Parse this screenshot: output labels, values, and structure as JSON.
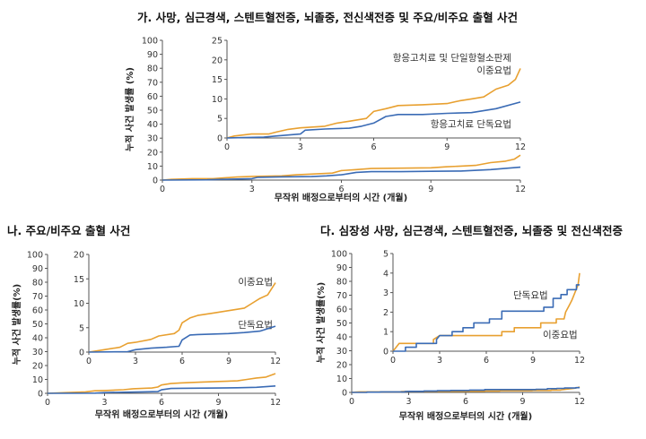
{
  "colors": {
    "dual": "#E8A030",
    "mono": "#3A6BB5",
    "axis": "#555555"
  },
  "chart_data": [
    {
      "type": "line",
      "title": "가. 사망, 심근경색, 스텐트혈전증, 뇌졸중, 전신색전증 및 주요/비주요 출혈 사건",
      "xlabel": "무작위 배정으로부터의 시간 (개월)",
      "ylabel": "누적 사건 발생률 (%)",
      "xlim": [
        0,
        12
      ],
      "xticks": [
        0,
        3,
        6,
        9,
        12
      ],
      "ylim": [
        0,
        100
      ],
      "yticks": [
        0,
        10,
        20,
        30,
        40,
        50,
        60,
        70,
        80,
        90,
        100
      ],
      "inset": {
        "xlim": [
          0,
          12
        ],
        "xticks": [
          0,
          3,
          6,
          9,
          12
        ],
        "ylim": [
          0,
          25
        ],
        "yticks": [
          0,
          5,
          10,
          15,
          20,
          25
        ]
      },
      "annotations": {
        "dual_line1": "항응고치료 및 단일항혈소판제",
        "dual_line2": "이중요법",
        "mono": "항응고치료 단독요법"
      },
      "series": [
        {
          "key": "dual",
          "points": [
            [
              0,
              0
            ],
            [
              0.3,
              0.5
            ],
            [
              1,
              1
            ],
            [
              1.7,
              1
            ],
            [
              2,
              1.5
            ],
            [
              2.5,
              2.2
            ],
            [
              3,
              2.6
            ],
            [
              4,
              3
            ],
            [
              4.5,
              3.8
            ],
            [
              5,
              4.3
            ],
            [
              5.7,
              5
            ],
            [
              6,
              6.8
            ],
            [
              6.5,
              7.5
            ],
            [
              7,
              8.3
            ],
            [
              8,
              8.5
            ],
            [
              9,
              8.8
            ],
            [
              9.5,
              9.5
            ],
            [
              10,
              10
            ],
            [
              10.5,
              10.5
            ],
            [
              11,
              12.5
            ],
            [
              11.5,
              13.5
            ],
            [
              11.8,
              15
            ],
            [
              12,
              17.8
            ]
          ]
        },
        {
          "key": "mono",
          "points": [
            [
              0,
              0
            ],
            [
              1.5,
              0.2
            ],
            [
              2,
              0.5
            ],
            [
              3,
              1
            ],
            [
              3.2,
              2
            ],
            [
              4,
              2.3
            ],
            [
              5,
              2.5
            ],
            [
              5.5,
              3
            ],
            [
              6,
              3.8
            ],
            [
              6.5,
              5.5
            ],
            [
              7,
              6
            ],
            [
              8,
              6
            ],
            [
              9,
              6.3
            ],
            [
              10,
              6.5
            ],
            [
              11,
              7.5
            ],
            [
              12,
              9.2
            ]
          ]
        }
      ]
    },
    {
      "type": "line",
      "title": "나. 주요/비주요 출혈 사건",
      "xlabel": "무작위 배정으로부터의 시간 (개월)",
      "ylabel": "누적 사건 발생률(%)",
      "xlim": [
        0,
        12
      ],
      "xticks": [
        0,
        3,
        6,
        9,
        12
      ],
      "ylim": [
        0,
        100
      ],
      "yticks": [
        0,
        10,
        20,
        30,
        40,
        50,
        60,
        70,
        80,
        90,
        100
      ],
      "inset": {
        "xlim": [
          0,
          12
        ],
        "xticks": [
          0,
          3,
          6,
          9,
          12
        ],
        "ylim": [
          0,
          20
        ],
        "yticks": [
          0,
          5,
          10,
          15,
          20
        ]
      },
      "annotations": {
        "dual_line1": "이중요법",
        "mono": "단독요법"
      },
      "series": [
        {
          "key": "dual",
          "points": [
            [
              0,
              0
            ],
            [
              1,
              0.5
            ],
            [
              2,
              1
            ],
            [
              2.5,
              1.8
            ],
            [
              3,
              2
            ],
            [
              4,
              2.6
            ],
            [
              4.5,
              3.3
            ],
            [
              5.5,
              3.8
            ],
            [
              5.8,
              4.5
            ],
            [
              6,
              6
            ],
            [
              6.5,
              7
            ],
            [
              7,
              7.5
            ],
            [
              8,
              8
            ],
            [
              9,
              8.5
            ],
            [
              10,
              9
            ],
            [
              10.5,
              10
            ],
            [
              11,
              11
            ],
            [
              11.5,
              11.7
            ],
            [
              12,
              14.2
            ]
          ]
        },
        {
          "key": "mono",
          "points": [
            [
              0,
              0
            ],
            [
              2.5,
              0.1
            ],
            [
              3,
              0.5
            ],
            [
              4,
              0.8
            ],
            [
              5,
              1
            ],
            [
              5.8,
              1.2
            ],
            [
              6,
              2.5
            ],
            [
              6.5,
              3.5
            ],
            [
              7,
              3.6
            ],
            [
              9,
              3.8
            ],
            [
              10,
              4
            ],
            [
              11,
              4.3
            ],
            [
              12,
              5.3
            ]
          ]
        }
      ]
    },
    {
      "type": "line",
      "title": "다. 심장성 사망, 심근경색, 스텐트혈전증, 뇌졸중 및 전신색전증",
      "xlabel": "무작위 배정으로부터의 시간 (개월)",
      "ylabel": "누적 사건 발생률(%)",
      "xlim": [
        0,
        12
      ],
      "xticks": [
        0,
        3,
        6,
        9,
        12
      ],
      "ylim": [
        0,
        100
      ],
      "yticks": [
        0,
        10,
        20,
        30,
        40,
        50,
        60,
        70,
        80,
        90,
        100
      ],
      "inset": {
        "xlim": [
          0,
          12
        ],
        "xticks": [
          0,
          3,
          6,
          9,
          12
        ],
        "ylim": [
          0,
          5
        ],
        "yticks": [
          0,
          1,
          2,
          3,
          4,
          5
        ]
      },
      "annotations": {
        "dual_line1": "이중요법",
        "mono": "단독요법"
      },
      "series": [
        {
          "key": "dual",
          "points": [
            [
              0,
              0
            ],
            [
              0.2,
              0.2
            ],
            [
              0.4,
              0.4
            ],
            [
              2.6,
              0.4
            ],
            [
              2.6,
              0.6
            ],
            [
              3,
              0.8
            ],
            [
              7,
              0.8
            ],
            [
              7,
              1.0
            ],
            [
              7.8,
              1.0
            ],
            [
              7.8,
              1.2
            ],
            [
              9.5,
              1.2
            ],
            [
              9.5,
              1.45
            ],
            [
              10.5,
              1.45
            ],
            [
              10.5,
              1.65
            ],
            [
              11,
              1.65
            ],
            [
              11.1,
              2
            ],
            [
              11.3,
              2.3
            ],
            [
              11.5,
              2.6
            ],
            [
              11.7,
              3.0
            ],
            [
              11.9,
              3.4
            ],
            [
              12,
              4
            ]
          ]
        },
        {
          "key": "mono",
          "points": [
            [
              0,
              0
            ],
            [
              0.8,
              0
            ],
            [
              0.8,
              0.2
            ],
            [
              1.5,
              0.2
            ],
            [
              1.5,
              0.4
            ],
            [
              2.8,
              0.4
            ],
            [
              2.8,
              0.6
            ],
            [
              3,
              0.8
            ],
            [
              3.8,
              0.8
            ],
            [
              3.8,
              1.0
            ],
            [
              4.5,
              1.0
            ],
            [
              4.5,
              1.2
            ],
            [
              5.2,
              1.2
            ],
            [
              5.2,
              1.45
            ],
            [
              6.2,
              1.45
            ],
            [
              6.2,
              1.65
            ],
            [
              7,
              1.65
            ],
            [
              7,
              2.05
            ],
            [
              9.7,
              2.05
            ],
            [
              9.7,
              2.25
            ],
            [
              10.3,
              2.25
            ],
            [
              10.3,
              2.7
            ],
            [
              10.8,
              2.7
            ],
            [
              10.8,
              2.9
            ],
            [
              11.2,
              2.9
            ],
            [
              11.2,
              3.15
            ],
            [
              11.8,
              3.15
            ],
            [
              11.8,
              3.4
            ],
            [
              12,
              3.4
            ]
          ]
        }
      ]
    }
  ]
}
